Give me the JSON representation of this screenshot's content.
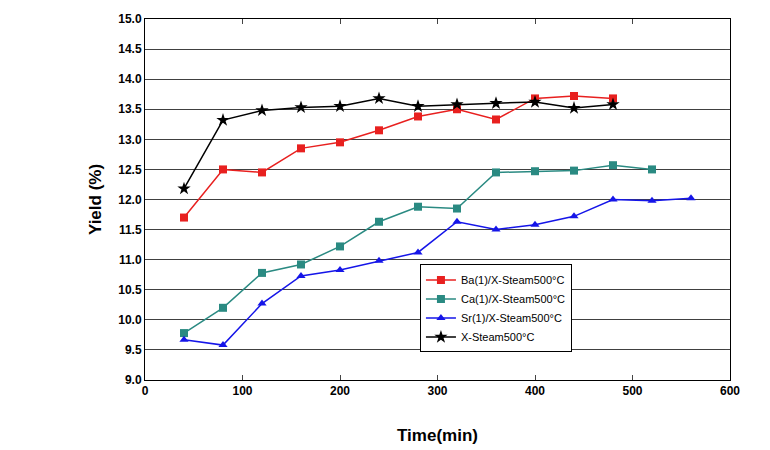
{
  "chart_data": {
    "type": "line",
    "x_label": "Time(min)",
    "y_label": "Yield (%)",
    "xlim": [
      0,
      600
    ],
    "xticks": [
      0,
      100,
      200,
      300,
      400,
      500,
      600
    ],
    "ylim": [
      9.0,
      15.0
    ],
    "yticks": [
      {
        "value": 9.0,
        "label": "9.0"
      },
      {
        "value": 9.5,
        "label": "9.5"
      },
      {
        "value": 10.0,
        "label": "10.0"
      },
      {
        "value": 10.5,
        "label": "10.5"
      },
      {
        "value": 11.0,
        "label": "11.0"
      },
      {
        "value": 11.5,
        "label": "11.5"
      },
      {
        "value": 12.0,
        "label": "12.0"
      },
      {
        "value": 12.5,
        "label": "12.5"
      },
      {
        "value": 13.0,
        "label": "13.0"
      },
      {
        "value": 13.5,
        "label": "13.5"
      },
      {
        "value": 14.0,
        "label": "14.0"
      },
      {
        "value": 14.5,
        "label": "14.5"
      },
      {
        "value": 15.0,
        "label": "15.0"
      }
    ],
    "grid": true,
    "legend": "lower right",
    "series": [
      {
        "name": "Ba(1)/X-Steam500°C",
        "color": "#e8201f",
        "marker": "square",
        "x": [
          40,
          80,
          120,
          160,
          200,
          240,
          280,
          320,
          360,
          400,
          440,
          480
        ],
        "values": [
          11.7,
          12.5,
          12.45,
          12.85,
          12.95,
          13.15,
          13.38,
          13.5,
          13.33,
          13.68,
          13.72,
          13.68
        ]
      },
      {
        "name": "Ca(1)/X-Steam500°C",
        "color": "#2a8a82",
        "marker": "square",
        "x": [
          40,
          80,
          120,
          160,
          200,
          240,
          280,
          320,
          360,
          400,
          440,
          480,
          520
        ],
        "values": [
          9.78,
          10.2,
          10.78,
          10.92,
          11.22,
          11.63,
          11.88,
          11.85,
          12.45,
          12.47,
          12.48,
          12.57,
          12.5
        ]
      },
      {
        "name": "Sr(1)/X-Steam500°C",
        "color": "#1515e8",
        "marker": "triangle-up",
        "x": [
          40,
          80,
          120,
          160,
          200,
          240,
          280,
          320,
          360,
          400,
          440,
          480,
          520,
          560
        ],
        "values": [
          9.67,
          9.58,
          10.27,
          10.73,
          10.83,
          10.98,
          11.12,
          11.63,
          11.5,
          11.58,
          11.72,
          12.0,
          11.98,
          12.02
        ]
      },
      {
        "name": "X-Steam500°C",
        "color": "#000000",
        "marker": "star",
        "x": [
          40,
          80,
          120,
          160,
          200,
          240,
          280,
          320,
          360,
          400,
          440,
          480
        ],
        "values": [
          12.18,
          13.32,
          13.48,
          13.53,
          13.55,
          13.68,
          13.55,
          13.58,
          13.6,
          13.62,
          13.52,
          13.58
        ]
      }
    ]
  }
}
